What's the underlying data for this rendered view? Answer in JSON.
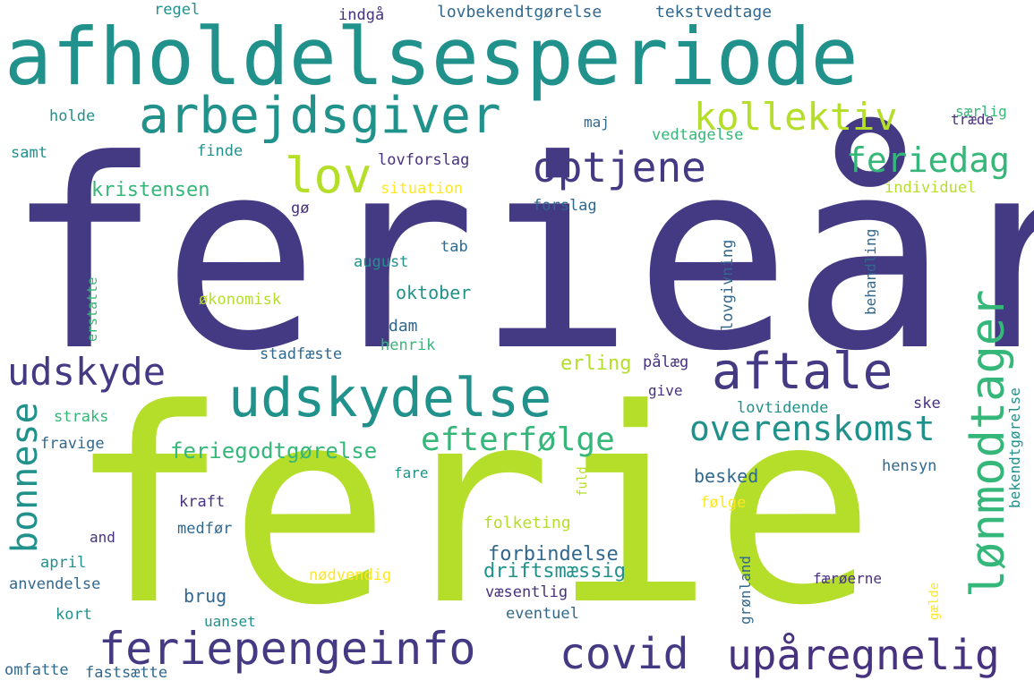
{
  "colors": {
    "background": "#ffffff",
    "dark_purple": "#443983",
    "teal": "#21918c",
    "lime": "#b5de2b",
    "green": "#35b779",
    "blue": "#31688e",
    "deep_purple": "#46327e",
    "yellow": "#fde725"
  },
  "words": [
    "ferieår",
    "ferie",
    "afholdelsesperiode",
    "arbejdsgiver",
    "udskydelse",
    "feriepengeinfo",
    "covid",
    "upåregnelig",
    "optjene",
    "lov",
    "kollektiv",
    "aftale",
    "udskyde",
    "feriedag",
    "lønmodtager",
    "overenskomst",
    "efterfølge",
    "bonnese",
    "feriegodtgørelse",
    "kristensen",
    "regel",
    "indgå",
    "lovbekendtgørelse",
    "tekstvedtage",
    "holde",
    "maj",
    "særlig",
    "træde",
    "samt",
    "finde",
    "lovforslag",
    "vedtagelse",
    "situation",
    "individuel",
    "gø",
    "forslag",
    "august",
    "tab",
    "oktober",
    "økonomisk",
    "dam",
    "henrik",
    "stadfæste",
    "erling",
    "pålæg",
    "give",
    "ske",
    "lovtidende",
    "straks",
    "fravige",
    "fare",
    "hensyn",
    "besked",
    "kraft",
    "følge",
    "folketing",
    "and",
    "medfør",
    "april",
    "forbindelse",
    "driftsmæssig",
    "nødvendig",
    "anvendelse",
    "brug",
    "væsentlig",
    "færøerne",
    "kort",
    "uanset",
    "eventuel",
    "omfatte",
    "fastsætte",
    "lovgivning",
    "behandling",
    "erstatte",
    "bekendtgørelse",
    "fuld",
    "grønland",
    "gælde"
  ]
}
